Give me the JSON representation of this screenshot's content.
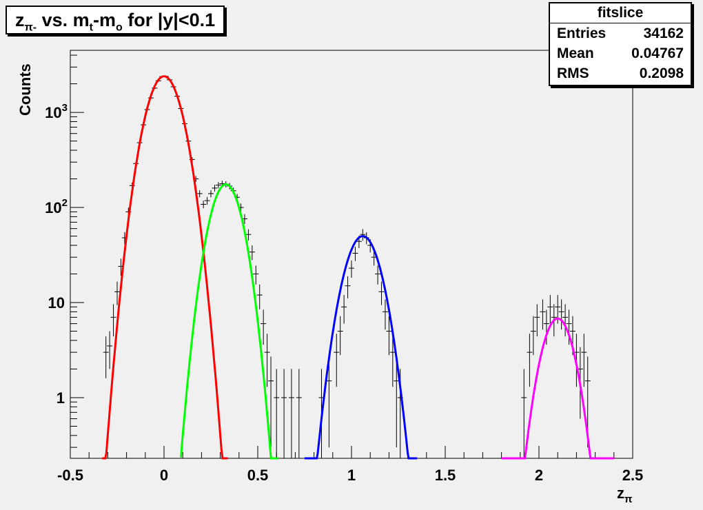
{
  "title": {
    "z": "z",
    "z_sub": "π-",
    "part1": " vs. m",
    "mt_sub": "t",
    "part2": "-m",
    "mo_sub": "o",
    "part3": " for |y|<0.1"
  },
  "stats": {
    "name": "fitslice",
    "rows": [
      {
        "label": "Entries",
        "value": "34162"
      },
      {
        "label": "Mean",
        "value": "0.04767"
      },
      {
        "label": "RMS",
        "value": "0.2098"
      }
    ]
  },
  "chart_data": {
    "type": "scatter",
    "xlabel": "z",
    "xlabel_sub": "π",
    "ylabel": "Counts",
    "xlim": [
      -0.5,
      2.5
    ],
    "ylim": [
      0.23,
      4500
    ],
    "y_scale": "log",
    "x_ticks": [
      "-0.5",
      "0",
      "0.5",
      "1",
      "1.5",
      "2",
      "2.5"
    ],
    "y_ticks": [
      {
        "value": 1,
        "base": "1",
        "exp": ""
      },
      {
        "value": 10,
        "base": "10",
        "exp": ""
      },
      {
        "value": 100,
        "base": "10",
        "exp": "2"
      },
      {
        "value": 1000,
        "base": "10",
        "exp": "3"
      }
    ],
    "fits": [
      {
        "color": "#ff0000",
        "amplitude": 2400,
        "mean": 0.0,
        "sigma": 0.072,
        "range": [
          -0.33,
          0.34
        ]
      },
      {
        "color": "#00ff00",
        "amplitude": 175,
        "mean": 0.33,
        "sigma": 0.066,
        "range": [
          0.09,
          0.61
        ]
      },
      {
        "color": "#0000ff",
        "amplitude": 50,
        "mean": 1.06,
        "sigma": 0.074,
        "range": [
          0.75,
          1.35
        ]
      },
      {
        "color": "#ff00ff",
        "amplitude": 6.8,
        "mean": 2.1,
        "sigma": 0.067,
        "range": [
          1.8,
          2.4
        ]
      }
    ],
    "points": [
      [
        -0.31,
        3,
        1.4
      ],
      [
        -0.29,
        3.5,
        1.5
      ],
      [
        -0.27,
        7,
        2.6
      ],
      [
        -0.25,
        13,
        3.6
      ],
      [
        -0.23,
        24,
        4.9
      ],
      [
        -0.21,
        48,
        7
      ],
      [
        -0.19,
        90,
        9.5
      ],
      [
        -0.17,
        170,
        13
      ],
      [
        -0.15,
        290,
        17
      ],
      [
        -0.13,
        480,
        22
      ],
      [
        -0.11,
        740,
        27
      ],
      [
        -0.09,
        1070,
        33
      ],
      [
        -0.07,
        1420,
        38
      ],
      [
        -0.05,
        1800,
        42
      ],
      [
        -0.03,
        2150,
        46
      ],
      [
        -0.01,
        2380,
        49
      ],
      [
        0.01,
        2390,
        49
      ],
      [
        0.03,
        2200,
        47
      ],
      [
        0.05,
        1860,
        43
      ],
      [
        0.07,
        1480,
        38
      ],
      [
        0.09,
        1100,
        33
      ],
      [
        0.11,
        760,
        28
      ],
      [
        0.13,
        500,
        22
      ],
      [
        0.15,
        320,
        18
      ],
      [
        0.17,
        200,
        14
      ],
      [
        0.19,
        140,
        12
      ],
      [
        0.21,
        108,
        10
      ],
      [
        0.23,
        118,
        11
      ],
      [
        0.25,
        140,
        12
      ],
      [
        0.27,
        160,
        13
      ],
      [
        0.29,
        172,
        13
      ],
      [
        0.31,
        178,
        13
      ],
      [
        0.33,
        176,
        13
      ],
      [
        0.35,
        168,
        13
      ],
      [
        0.37,
        150,
        12
      ],
      [
        0.39,
        128,
        11
      ],
      [
        0.41,
        100,
        10
      ],
      [
        0.43,
        76,
        9
      ],
      [
        0.45,
        52,
        7
      ],
      [
        0.47,
        34,
        6
      ],
      [
        0.49,
        20,
        4.5
      ],
      [
        0.51,
        12,
        3.5
      ],
      [
        0.53,
        6,
        2.4
      ],
      [
        0.55,
        3,
        1.7
      ],
      [
        0.57,
        1.5,
        1.2
      ],
      [
        0.6,
        1,
        1
      ],
      [
        0.64,
        1,
        1
      ],
      [
        0.68,
        1,
        1
      ],
      [
        0.72,
        1,
        1
      ],
      [
        0.84,
        1,
        1
      ],
      [
        0.88,
        1.5,
        1.2
      ],
      [
        0.92,
        3,
        1.7
      ],
      [
        0.94,
        5,
        2.2
      ],
      [
        0.96,
        9,
        3
      ],
      [
        0.98,
        15,
        3.9
      ],
      [
        1.0,
        23,
        4.8
      ],
      [
        1.02,
        33,
        5.7
      ],
      [
        1.04,
        44,
        6.6
      ],
      [
        1.06,
        52,
        7.2
      ],
      [
        1.08,
        48,
        6.9
      ],
      [
        1.1,
        40,
        6.3
      ],
      [
        1.12,
        30,
        5.5
      ],
      [
        1.14,
        20,
        4.5
      ],
      [
        1.16,
        13,
        3.6
      ],
      [
        1.18,
        8,
        2.8
      ],
      [
        1.2,
        5,
        2.2
      ],
      [
        1.22,
        3,
        1.7
      ],
      [
        1.24,
        1.5,
        1.2
      ],
      [
        1.26,
        1,
        1
      ],
      [
        1.92,
        1,
        1
      ],
      [
        1.95,
        3,
        1.7
      ],
      [
        1.97,
        5,
        2.2
      ],
      [
        1.99,
        7,
        2.6
      ],
      [
        2.02,
        8,
        2.8
      ],
      [
        2.04,
        6,
        2.4
      ],
      [
        2.06,
        9,
        3
      ],
      [
        2.08,
        7,
        2.6
      ],
      [
        2.1,
        9,
        3
      ],
      [
        2.12,
        8,
        2.8
      ],
      [
        2.14,
        7,
        2.6
      ],
      [
        2.16,
        6,
        2.4
      ],
      [
        2.18,
        5,
        2.2
      ],
      [
        2.2,
        3,
        1.7
      ],
      [
        2.22,
        2,
        1.4
      ],
      [
        2.24,
        3,
        1.7
      ],
      [
        2.26,
        1.5,
        1.2
      ]
    ]
  }
}
